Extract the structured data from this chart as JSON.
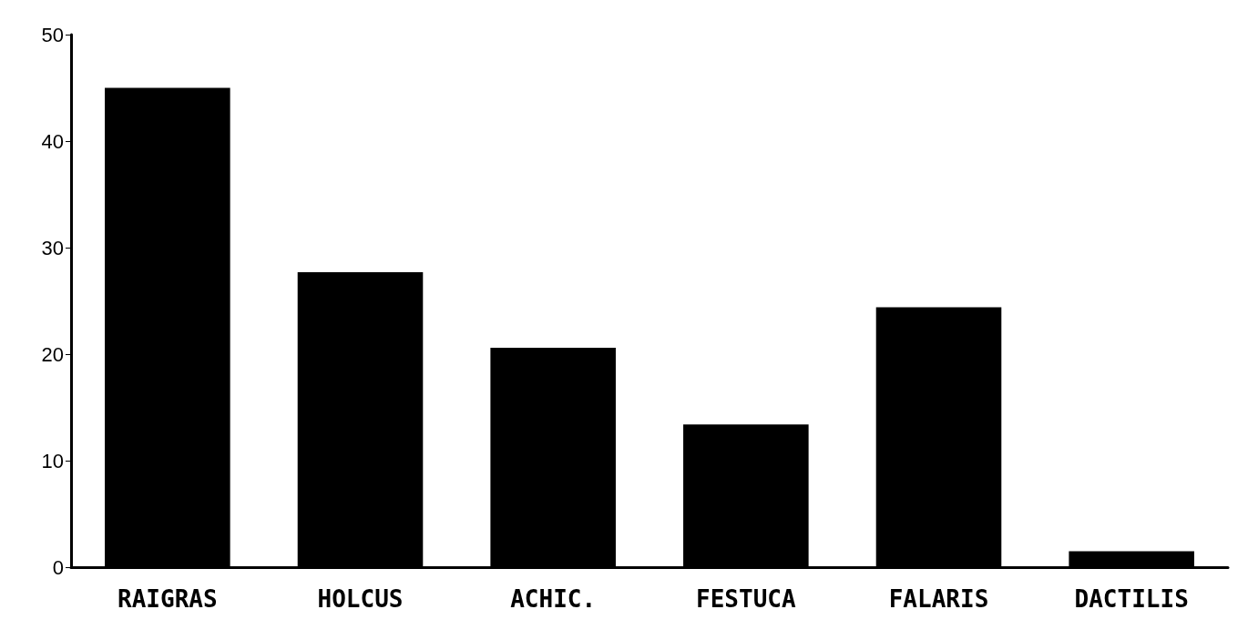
{
  "chart_data": {
    "type": "bar",
    "categories": [
      "RAIGRAS",
      "HOLCUS",
      "ACHIC.",
      "FESTUCA",
      "FALARIS",
      "DACTILIS"
    ],
    "values": [
      45,
      27.7,
      20.6,
      13.4,
      24.4,
      1.5
    ],
    "color": "#000000",
    "ylim": [
      0,
      50
    ],
    "yticks": [
      0,
      10,
      20,
      30,
      40,
      50
    ],
    "grid": false
  }
}
